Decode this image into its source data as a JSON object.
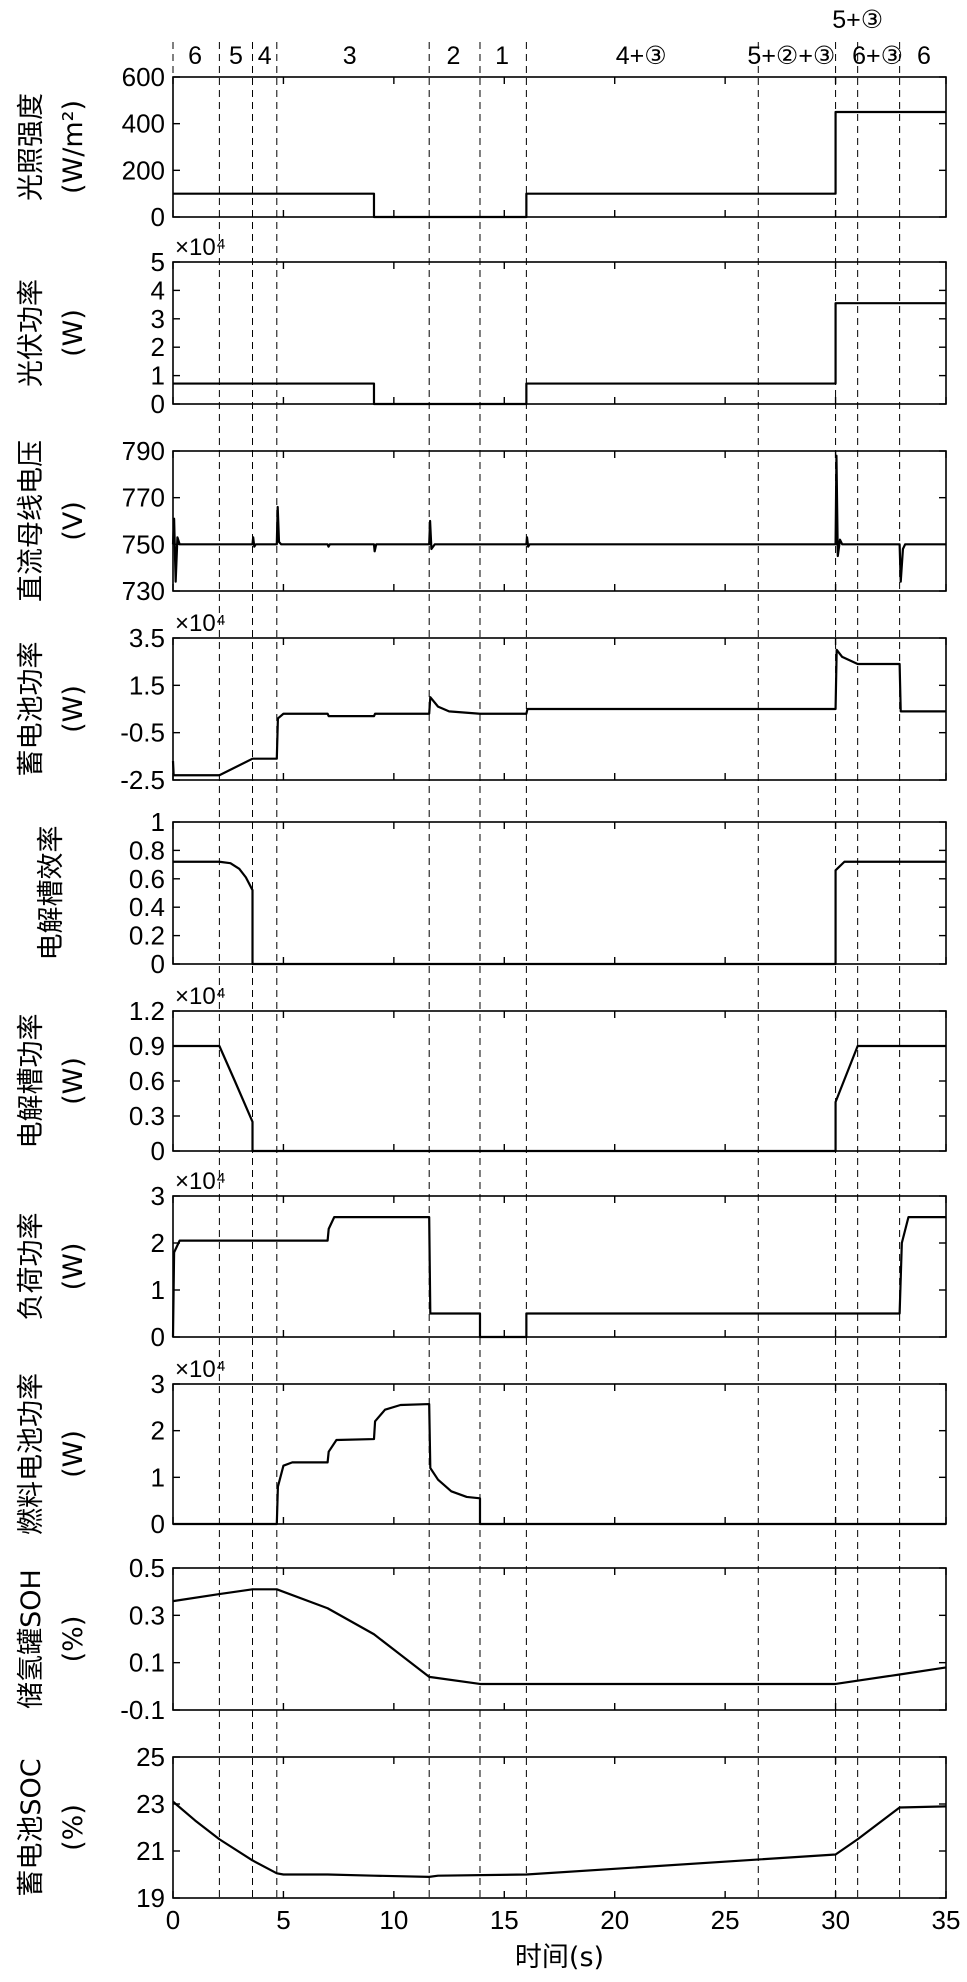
{
  "chart_data": {
    "type": "line",
    "x_axis": {
      "label": "时间(s)",
      "range": [
        0,
        35
      ],
      "ticks": [
        0,
        5,
        10,
        15,
        20,
        25,
        30,
        35
      ]
    },
    "stage_boundaries": [
      2.1,
      3.6,
      4.7,
      11.6,
      13.9,
      16.0,
      26.5,
      30.0,
      31.0,
      32.9
    ],
    "stage_labels": [
      {
        "text": "6",
        "x": 1.0
      },
      {
        "text": "5",
        "x": 2.85
      },
      {
        "text": "4",
        "x": 4.15
      },
      {
        "text": "3",
        "x": 8.0
      },
      {
        "text": "2",
        "x": 12.7
      },
      {
        "text": "1",
        "x": 14.9
      },
      {
        "text": "4+③",
        "x": 21.2
      },
      {
        "text": "5+②+③",
        "x": 28.0
      },
      {
        "text": "6+③",
        "x": 31.9
      },
      {
        "text": "6",
        "x": 34.0
      },
      {
        "text": "5+③",
        "x": 31.0,
        "upper": true
      }
    ],
    "panels": [
      {
        "ylabel": [
          "光照强度",
          "(W/m²)"
        ],
        "ylim": [
          0,
          600
        ],
        "yticks": [
          0,
          200,
          400,
          600
        ],
        "multiplier": "",
        "series": [
          {
            "points": [
              [
                0,
                100
              ],
              [
                9.1,
                100
              ],
              [
                9.1,
                0
              ],
              [
                16.0,
                0
              ],
              [
                16.0,
                100
              ],
              [
                30.0,
                100
              ],
              [
                30.0,
                450
              ],
              [
                35,
                450
              ]
            ]
          }
        ]
      },
      {
        "ylabel": [
          "光伏功率",
          "(W)"
        ],
        "ylim": [
          0,
          5
        ],
        "yticks": [
          0,
          1,
          2,
          3,
          4,
          5
        ],
        "multiplier": "×10⁴",
        "series": [
          {
            "points": [
              [
                0,
                0.72
              ],
              [
                9.1,
                0.72
              ],
              [
                9.1,
                0
              ],
              [
                16.0,
                0
              ],
              [
                16.0,
                0.72
              ],
              [
                30.0,
                0.72
              ],
              [
                30.0,
                3.55
              ],
              [
                35,
                3.55
              ]
            ]
          }
        ]
      },
      {
        "ylabel": [
          "直流母线电压",
          "(V)"
        ],
        "ylim": [
          730,
          790
        ],
        "yticks": [
          730,
          750,
          770,
          790
        ],
        "multiplier": "",
        "series": [
          {
            "points": [
              [
                0,
                750
              ],
              [
                0.05,
                761
              ],
              [
                0.12,
                734
              ],
              [
                0.2,
                753
              ],
              [
                0.3,
                750
              ],
              [
                3.6,
                750
              ],
              [
                3.63,
                753
              ],
              [
                3.68,
                749
              ],
              [
                3.75,
                750
              ],
              [
                4.7,
                750
              ],
              [
                4.74,
                766
              ],
              [
                4.8,
                751
              ],
              [
                4.9,
                750
              ],
              [
                7.0,
                750
              ],
              [
                7.04,
                749
              ],
              [
                7.1,
                750
              ],
              [
                9.1,
                750
              ],
              [
                9.13,
                747
              ],
              [
                9.2,
                750
              ],
              [
                11.6,
                750
              ],
              [
                11.64,
                760
              ],
              [
                11.7,
                748
              ],
              [
                11.85,
                750
              ],
              [
                16.0,
                750
              ],
              [
                16.03,
                753
              ],
              [
                16.08,
                749
              ],
              [
                16.15,
                750
              ],
              [
                30.0,
                750
              ],
              [
                30.04,
                788
              ],
              [
                30.1,
                745
              ],
              [
                30.2,
                752
              ],
              [
                30.3,
                750
              ],
              [
                32.9,
                750
              ],
              [
                32.95,
                734
              ],
              [
                33.05,
                748
              ],
              [
                33.15,
                750
              ],
              [
                35,
                750
              ]
            ]
          }
        ]
      },
      {
        "ylabel": [
          "蓄电池功率",
          "(W)"
        ],
        "ylim": [
          -2.5,
          3.5
        ],
        "yticks": [
          -2.5,
          -0.5,
          1.5,
          3.5
        ],
        "multiplier": "×10⁴",
        "series": [
          {
            "points": [
              [
                0,
                -1.7
              ],
              [
                0.03,
                -2.3
              ],
              [
                2.1,
                -2.3
              ],
              [
                3.6,
                -1.6
              ],
              [
                4.7,
                -1.6
              ],
              [
                4.75,
                0.1
              ],
              [
                5.0,
                0.3
              ],
              [
                5.5,
                0.3
              ],
              [
                7.0,
                0.3
              ],
              [
                7.05,
                0.2
              ],
              [
                9.1,
                0.2
              ],
              [
                9.15,
                0.3
              ],
              [
                11.6,
                0.3
              ],
              [
                11.65,
                1.0
              ],
              [
                12.0,
                0.6
              ],
              [
                12.5,
                0.4
              ],
              [
                13.9,
                0.3
              ],
              [
                16.0,
                0.3
              ],
              [
                16.05,
                0.5
              ],
              [
                30.0,
                0.5
              ],
              [
                30.05,
                3.0
              ],
              [
                30.3,
                2.7
              ],
              [
                31.0,
                2.4
              ],
              [
                32.9,
                2.4
              ],
              [
                32.95,
                0.4
              ],
              [
                35,
                0.4
              ]
            ]
          }
        ]
      },
      {
        "ylabel": [
          "电解槽效率"
        ],
        "ylim": [
          0,
          1
        ],
        "yticks": [
          0,
          0.2,
          0.4,
          0.6,
          0.8,
          1
        ],
        "multiplier": "",
        "series": [
          {
            "points": [
              [
                0,
                0.72
              ],
              [
                2.1,
                0.72
              ],
              [
                2.6,
                0.71
              ],
              [
                3.0,
                0.67
              ],
              [
                3.3,
                0.61
              ],
              [
                3.6,
                0.52
              ],
              [
                3.6,
                0
              ],
              [
                30.0,
                0
              ],
              [
                30.0,
                0.66
              ],
              [
                30.4,
                0.72
              ],
              [
                35,
                0.72
              ]
            ]
          }
        ]
      },
      {
        "ylabel": [
          "电解槽功率",
          "(W)"
        ],
        "ylim": [
          0,
          1.2
        ],
        "yticks": [
          0,
          0.3,
          0.6,
          0.9,
          1.2
        ],
        "multiplier": "×10⁴",
        "series": [
          {
            "points": [
              [
                0,
                0.9
              ],
              [
                2.1,
                0.9
              ],
              [
                2.8,
                0.6
              ],
              [
                3.6,
                0.25
              ],
              [
                3.6,
                0
              ],
              [
                30.0,
                0
              ],
              [
                30.0,
                0.42
              ],
              [
                31.0,
                0.9
              ],
              [
                35,
                0.9
              ]
            ]
          }
        ]
      },
      {
        "ylabel": [
          "负荷功率",
          "(W)"
        ],
        "ylim": [
          0,
          3
        ],
        "yticks": [
          0,
          1,
          2,
          3
        ],
        "multiplier": "×10⁴",
        "series": [
          {
            "points": [
              [
                0,
                0
              ],
              [
                0.05,
                1.8
              ],
              [
                0.3,
                2.05
              ],
              [
                7.0,
                2.05
              ],
              [
                7.05,
                2.3
              ],
              [
                7.3,
                2.55
              ],
              [
                11.6,
                2.55
              ],
              [
                11.65,
                0.5
              ],
              [
                13.9,
                0.5
              ],
              [
                13.9,
                0
              ],
              [
                16.0,
                0
              ],
              [
                16.0,
                0.5
              ],
              [
                32.9,
                0.5
              ],
              [
                33.0,
                2.0
              ],
              [
                33.3,
                2.55
              ],
              [
                35,
                2.55
              ]
            ]
          }
        ]
      },
      {
        "ylabel": [
          "燃料电池功率",
          "(W)"
        ],
        "ylim": [
          0,
          3
        ],
        "yticks": [
          0,
          1,
          2,
          3
        ],
        "multiplier": "×10⁴",
        "series": [
          {
            "points": [
              [
                0,
                0
              ],
              [
                4.7,
                0
              ],
              [
                4.75,
                0.8
              ],
              [
                5.0,
                1.25
              ],
              [
                5.4,
                1.32
              ],
              [
                7.0,
                1.32
              ],
              [
                7.05,
                1.55
              ],
              [
                7.4,
                1.8
              ],
              [
                9.1,
                1.82
              ],
              [
                9.15,
                2.2
              ],
              [
                9.6,
                2.45
              ],
              [
                10.3,
                2.55
              ],
              [
                11.6,
                2.57
              ],
              [
                11.65,
                1.2
              ],
              [
                12.0,
                0.95
              ],
              [
                12.6,
                0.7
              ],
              [
                13.3,
                0.58
              ],
              [
                13.9,
                0.55
              ],
              [
                13.9,
                0
              ],
              [
                35,
                0
              ]
            ]
          }
        ]
      },
      {
        "ylabel": [
          "储氢罐SOH",
          "(%)"
        ],
        "ylim": [
          -0.1,
          0.5
        ],
        "yticks": [
          -0.1,
          0.1,
          0.3,
          0.5
        ],
        "multiplier": "",
        "series": [
          {
            "points": [
              [
                0,
                0.36
              ],
              [
                2.1,
                0.39
              ],
              [
                3.6,
                0.41
              ],
              [
                4.7,
                0.41
              ],
              [
                7.0,
                0.33
              ],
              [
                9.1,
                0.22
              ],
              [
                11.6,
                0.04
              ],
              [
                13.9,
                0.01
              ],
              [
                30.0,
                0.01
              ],
              [
                32.9,
                0.05
              ],
              [
                35,
                0.08
              ]
            ]
          }
        ]
      },
      {
        "ylabel": [
          "蓄电池SOC",
          "(%)"
        ],
        "ylim": [
          19,
          25
        ],
        "yticks": [
          19,
          21,
          23,
          25
        ],
        "multiplier": "",
        "series": [
          {
            "points": [
              [
                0,
                23.1
              ],
              [
                1.0,
                22.3
              ],
              [
                2.1,
                21.5
              ],
              [
                3.6,
                20.6
              ],
              [
                4.7,
                20.05
              ],
              [
                5.0,
                20.0
              ],
              [
                7.0,
                20.0
              ],
              [
                9.1,
                19.95
              ],
              [
                11.6,
                19.9
              ],
              [
                12.0,
                19.95
              ],
              [
                16.0,
                20.0
              ],
              [
                30.0,
                20.85
              ],
              [
                31.0,
                21.5
              ],
              [
                32.9,
                22.85
              ],
              [
                35,
                22.9
              ]
            ]
          }
        ]
      }
    ]
  }
}
